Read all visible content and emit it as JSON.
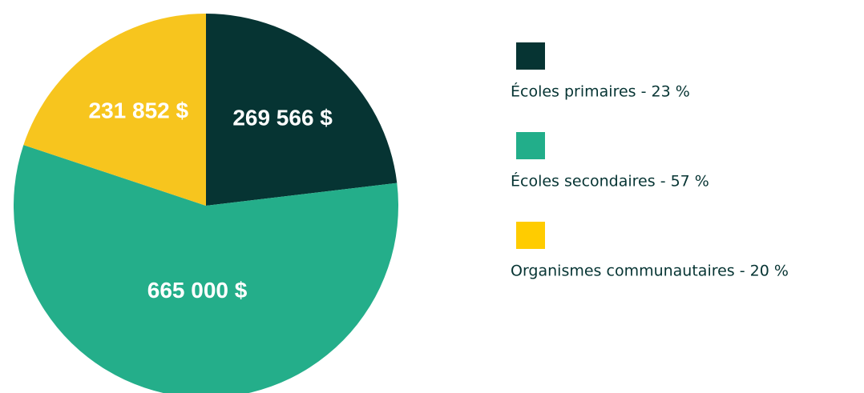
{
  "chart_data": {
    "type": "pie",
    "categories": [
      "Écoles primaires",
      "Écoles secondaires",
      "Organismes communautaires"
    ],
    "values": [
      269566,
      665000,
      231852
    ],
    "value_labels": [
      "269 566 $",
      "665 000 $",
      "231 852 $"
    ],
    "colors": [
      "#063433",
      "#24ae8a",
      "#f7c51e"
    ],
    "legend": [
      "Écoles primaires - 23 %",
      "Écoles secondaires - 57 %",
      "Organismes communautaires - 20 %"
    ],
    "legend_colors": [
      "#063433",
      "#22ae8a",
      "#ffcc00"
    ]
  }
}
